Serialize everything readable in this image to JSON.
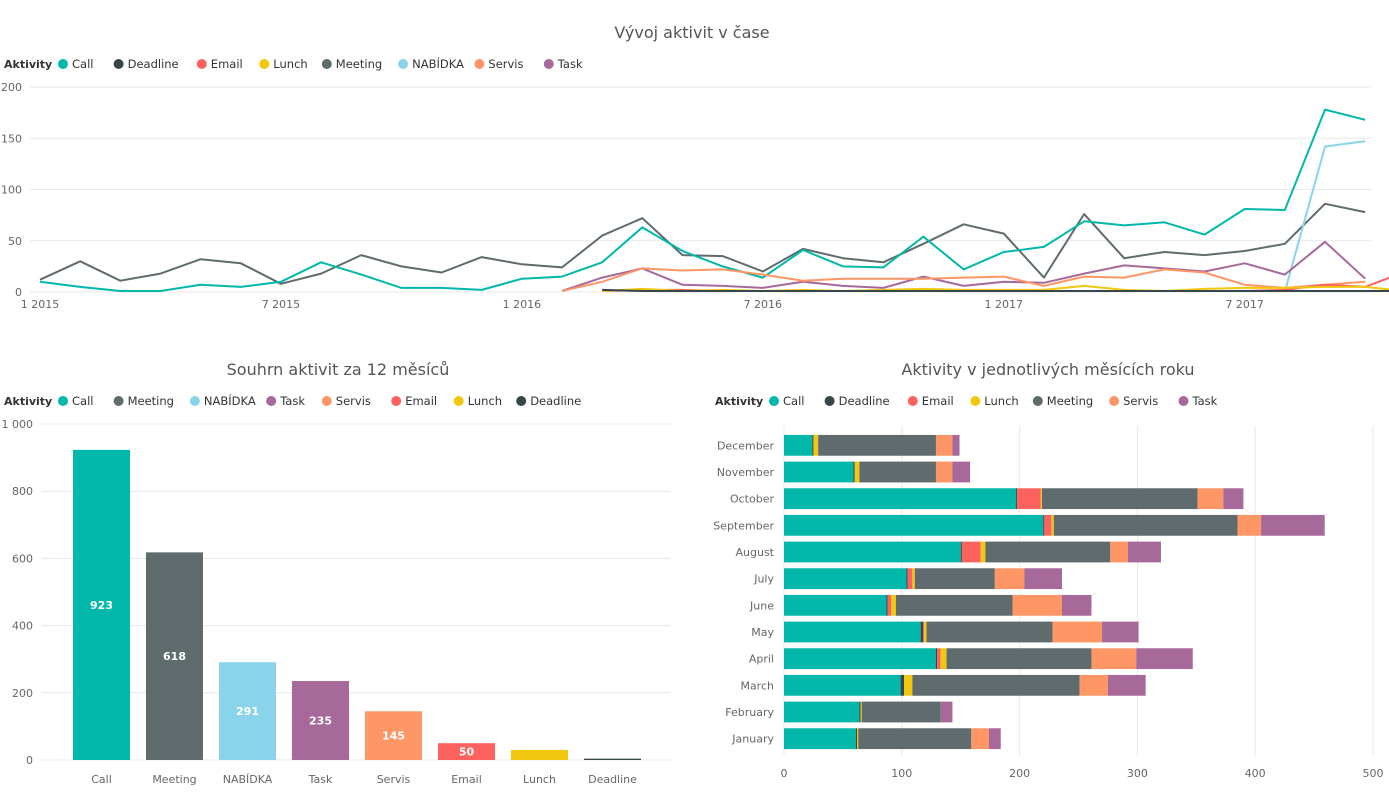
{
  "colors": {
    "Call": "#01B8AA",
    "Deadline": "#374649",
    "Email": "#FD625E",
    "Lunch": "#F2C80F",
    "Meeting": "#5F6B6D",
    "NABÍDKA": "#8AD4EB",
    "Servis": "#FE9666",
    "Task": "#A66999"
  },
  "chart_data": [
    {
      "id": "line",
      "type": "line",
      "title": "Vývoj aktivit v čase",
      "legend_title": "Aktivity",
      "legend": [
        "Call",
        "Deadline",
        "Email",
        "Lunch",
        "Meeting",
        "NABÍDKA",
        "Servis",
        "Task"
      ],
      "ylim": [
        0,
        200
      ],
      "yticks": [
        0,
        50,
        100,
        150,
        200
      ],
      "x_range": [
        0,
        32
      ],
      "xticks": [
        {
          "x": 0,
          "label": "1 2015"
        },
        {
          "x": 6,
          "label": "7 2015"
        },
        {
          "x": 12,
          "label": "1 2016"
        },
        {
          "x": 18,
          "label": "7 2016"
        },
        {
          "x": 24,
          "label": "1 2017"
        },
        {
          "x": 30,
          "label": "7 2017"
        }
      ],
      "series": [
        {
          "name": "Meeting",
          "start": 0,
          "values": [
            12,
            30,
            11,
            18,
            32,
            28,
            8,
            18,
            36,
            25,
            19,
            34,
            27,
            24,
            55,
            72,
            36,
            35,
            20,
            42,
            33,
            29,
            47,
            66,
            57,
            14,
            76,
            33,
            39,
            36,
            40,
            47,
            86,
            78
          ]
        },
        {
          "name": "Call",
          "start": 0,
          "values": [
            10,
            5,
            1,
            1,
            7,
            5,
            10,
            29,
            17,
            4,
            4,
            2,
            13,
            15,
            29,
            63,
            40,
            25,
            14,
            41,
            25,
            24,
            54,
            22,
            39,
            44,
            69,
            65,
            68,
            56,
            81,
            80,
            178,
            168
          ]
        },
        {
          "name": "NABÍDKA",
          "start": 31,
          "values": [
            0,
            142,
            147
          ]
        },
        {
          "name": "Task",
          "start": 13,
          "values": [
            1,
            14,
            23,
            7,
            6,
            4,
            10,
            6,
            4,
            15,
            6,
            10,
            9,
            18,
            26,
            23,
            20,
            28,
            17,
            49,
            13
          ]
        },
        {
          "name": "Servis",
          "start": 13,
          "values": [
            1,
            10,
            23,
            21,
            22,
            17,
            11,
            13,
            13,
            13,
            14,
            15,
            6,
            15,
            14,
            22,
            19,
            7,
            4,
            7,
            10
          ]
        },
        {
          "name": "Email",
          "start": 14,
          "values": [
            1,
            2,
            2,
            1,
            1,
            1,
            1,
            1,
            1,
            1,
            1,
            1,
            1,
            1,
            1,
            1,
            1,
            2,
            7,
            5,
            20
          ]
        },
        {
          "name": "Lunch",
          "start": 14,
          "values": [
            1,
            3,
            1,
            2,
            1,
            2,
            1,
            2,
            3,
            2,
            2,
            2,
            6,
            2,
            1,
            3,
            4,
            4,
            5,
            5,
            1
          ]
        },
        {
          "name": "Deadline",
          "start": 14,
          "values": [
            2,
            1,
            1,
            1,
            1,
            1,
            1,
            1,
            1,
            1,
            1,
            1,
            1,
            1,
            1,
            1,
            1,
            1,
            1,
            1,
            1
          ]
        }
      ]
    },
    {
      "id": "column",
      "type": "bar",
      "title": "Souhrn aktivit za 12 měsíců",
      "legend_title": "Aktivity",
      "legend": [
        "Call",
        "Meeting",
        "NABÍDKA",
        "Task",
        "Servis",
        "Email",
        "Lunch",
        "Deadline"
      ],
      "categories": [
        "Call",
        "Meeting",
        "NABÍDKA",
        "Task",
        "Servis",
        "Email",
        "Lunch",
        "Deadline"
      ],
      "values": [
        923,
        618,
        291,
        235,
        145,
        50,
        30,
        4
      ],
      "data_labels": [
        "923",
        "618",
        "291",
        "235",
        "145",
        "50",
        "",
        ""
      ],
      "ylim": [
        0,
        1000
      ],
      "yticks": [
        0,
        200,
        400,
        600,
        800,
        1000
      ],
      "ytick_labels": [
        "0",
        "200",
        "400",
        "600",
        "800",
        "1 000"
      ]
    },
    {
      "id": "hbar",
      "type": "bar",
      "orientation": "horizontal",
      "stacked": true,
      "title": "Aktivity v jednotlivých měsících roku",
      "legend_title": "Aktivity",
      "legend": [
        "Call",
        "Deadline",
        "Email",
        "Lunch",
        "Meeting",
        "Servis",
        "Task"
      ],
      "categories": [
        "December",
        "November",
        "October",
        "September",
        "August",
        "July",
        "June",
        "May",
        "April",
        "March",
        "February",
        "January"
      ],
      "series": [
        {
          "name": "Call",
          "values": [
            24,
            59,
            197,
            220,
            150,
            104,
            87,
            116,
            129,
            99,
            64,
            61
          ]
        },
        {
          "name": "Deadline",
          "values": [
            1,
            1,
            1,
            1,
            1,
            1,
            1,
            2,
            1,
            3,
            1,
            1
          ]
        },
        {
          "name": "Email",
          "values": [
            0,
            0,
            20,
            6,
            16,
            4,
            3,
            1,
            3,
            0,
            0,
            0
          ]
        },
        {
          "name": "Lunch",
          "values": [
            4,
            4,
            1,
            2,
            4,
            2,
            4,
            2,
            5,
            7,
            1,
            1
          ]
        },
        {
          "name": "Meeting",
          "values": [
            100,
            65,
            132,
            156,
            106,
            68,
            99,
            107,
            123,
            142,
            67,
            96
          ]
        },
        {
          "name": "Servis",
          "values": [
            14,
            14,
            22,
            20,
            15,
            25,
            42,
            42,
            38,
            24,
            0,
            15
          ]
        },
        {
          "name": "Task",
          "values": [
            6,
            15,
            17,
            54,
            28,
            32,
            25,
            31,
            48,
            32,
            10,
            10
          ]
        }
      ],
      "xlim": [
        0,
        500
      ],
      "xticks": [
        0,
        100,
        200,
        300,
        400,
        500
      ]
    }
  ]
}
